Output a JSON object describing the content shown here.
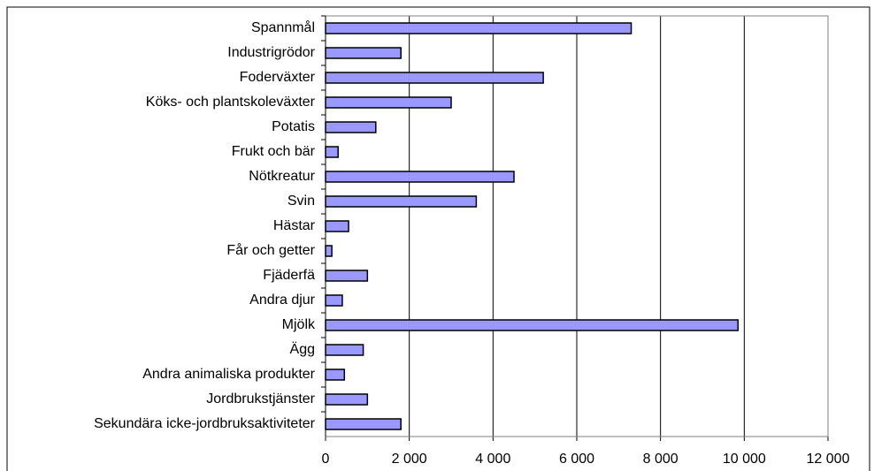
{
  "chart_data": {
    "type": "bar",
    "orientation": "horizontal",
    "categories": [
      "Spannmål",
      "Industrigrödor",
      "Foderväxter",
      "Köks- och plantskoleväxter",
      "Potatis",
      "Frukt och bär",
      "Nötkreatur",
      "Svin",
      "Hästar",
      "Får och getter",
      "Fjäderfä",
      "Andra djur",
      "Mjölk",
      "Ägg",
      "Andra animaliska produkter",
      "Jordbrukstjänster",
      "Sekundära icke-jordbruksaktiviteter"
    ],
    "values": [
      7300,
      1800,
      5200,
      3000,
      1200,
      300,
      4500,
      3600,
      550,
      150,
      1000,
      400,
      9850,
      900,
      450,
      1000,
      1800
    ],
    "color": "#9999ff",
    "xlim": [
      0,
      12000
    ],
    "xticks": [
      0,
      {
        "value": 2000,
        "label": "2 000"
      },
      {
        "value": 4000,
        "label": "4 000"
      },
      {
        "value": 6000,
        "label": "6 000"
      },
      {
        "value": 8000,
        "label": "8 000"
      },
      {
        "value": 10000,
        "label": "10 000"
      },
      {
        "value": 12000,
        "label": "12 000"
      }
    ],
    "grid": true
  }
}
